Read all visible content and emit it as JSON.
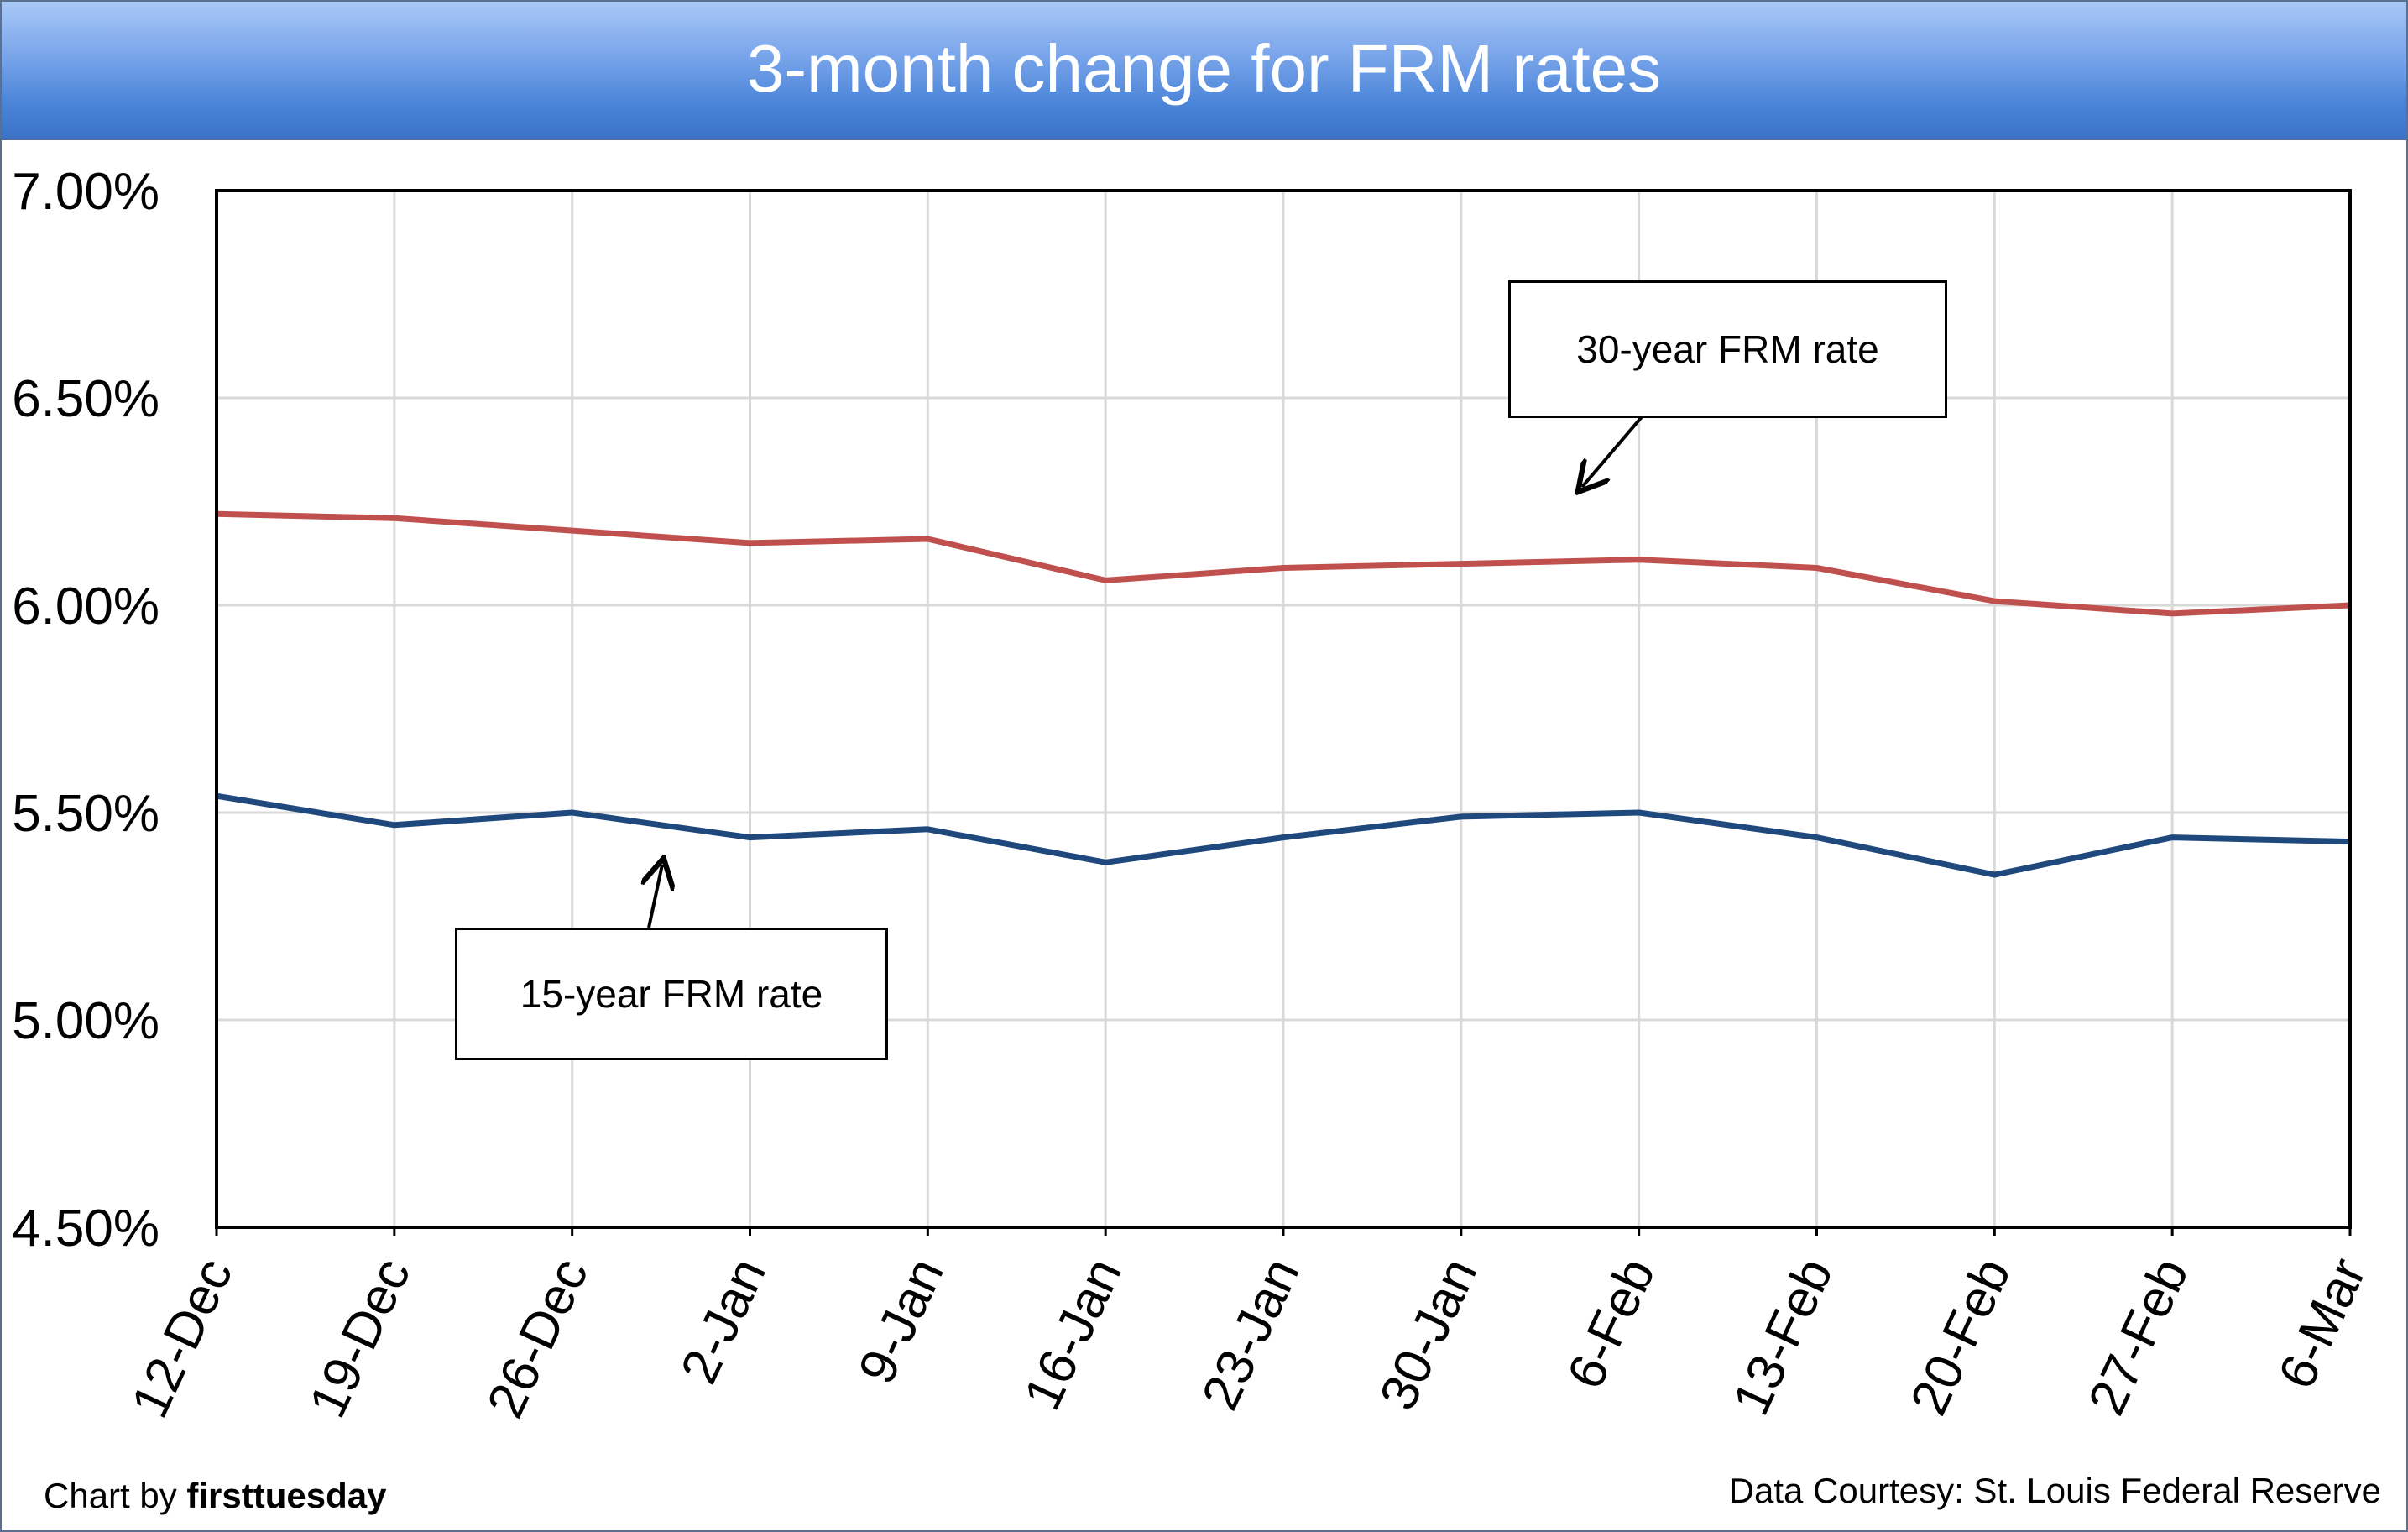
{
  "title": "3-month change for FRM rates",
  "footer": {
    "credit_prefix": "Chart by ",
    "credit_brand": "firsttuesday",
    "source": "Data Courtesy: St. Louis Federal Reserve"
  },
  "annotations": {
    "label_30yr": "30-year FRM rate",
    "label_15yr": "15-year FRM rate"
  },
  "colors": {
    "series_30yr": "#c0504d",
    "series_15yr": "#1f497d",
    "grid": "#d9d9d9",
    "title_bar": "#4a84d8"
  },
  "chart_data": {
    "type": "line",
    "title": "3-month change for FRM rates",
    "xlabel": "",
    "ylabel": "",
    "categories": [
      "12-Dec",
      "19-Dec",
      "26-Dec",
      "2-Jan",
      "9-Jan",
      "16-Jan",
      "23-Jan",
      "30-Jan",
      "6-Feb",
      "13-Feb",
      "20-Feb",
      "27-Feb",
      "6-Mar"
    ],
    "ylim": [
      4.5,
      7.0
    ],
    "yticks": [
      4.5,
      5.0,
      5.5,
      6.0,
      6.5,
      7.0
    ],
    "ytick_labels": [
      "4.50%",
      "5.00%",
      "5.50%",
      "6.00%",
      "6.50%",
      "7.00%"
    ],
    "grid": true,
    "legend": "none (callout labels)",
    "series": [
      {
        "name": "30-year FRM rate",
        "color": "#c0504d",
        "values": [
          6.22,
          6.21,
          6.18,
          6.15,
          6.16,
          6.06,
          6.09,
          6.1,
          6.11,
          6.09,
          6.01,
          5.98,
          6.0
        ]
      },
      {
        "name": "15-year FRM rate",
        "color": "#1f497d",
        "values": [
          5.54,
          5.47,
          5.5,
          5.44,
          5.46,
          5.38,
          5.44,
          5.49,
          5.5,
          5.44,
          5.35,
          5.44,
          5.43
        ]
      }
    ]
  }
}
